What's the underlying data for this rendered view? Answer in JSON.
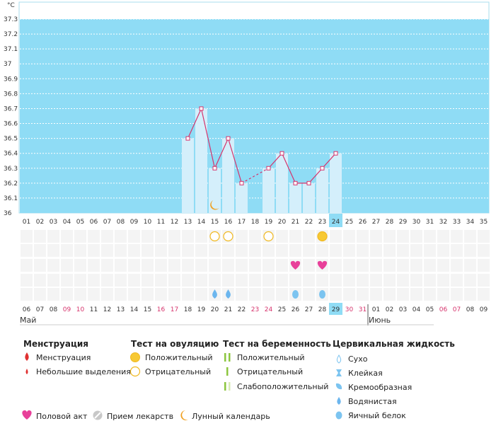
{
  "chart_data": {
    "type": "line",
    "unit": "°C",
    "y_ticks": [
      "37.3",
      "37.2",
      "37.1",
      "37",
      "36.9",
      "36.8",
      "36.7",
      "36.6",
      "36.5",
      "36.4",
      "36.3",
      "36.2",
      "36.1",
      "36"
    ],
    "ylim": [
      36.0,
      37.3
    ],
    "cycle_days": [
      "01",
      "02",
      "03",
      "04",
      "05",
      "06",
      "07",
      "08",
      "09",
      "10",
      "11",
      "12",
      "13",
      "14",
      "15",
      "16",
      "17",
      "18",
      "19",
      "20",
      "21",
      "22",
      "23",
      "24",
      "25",
      "26",
      "27",
      "28",
      "29",
      "30",
      "31",
      "32",
      "33",
      "34",
      "35"
    ],
    "current_cycle_day_index": 23,
    "dates": [
      "06",
      "07",
      "08",
      "09",
      "10",
      "11",
      "12",
      "13",
      "14",
      "15",
      "16",
      "17",
      "18",
      "19",
      "20",
      "21",
      "22",
      "23",
      "24",
      "25",
      "26",
      "27",
      "28",
      "29",
      "30",
      "31",
      "01",
      "02",
      "03",
      "04",
      "05",
      "06",
      "07",
      "08",
      "09"
    ],
    "weekend_date_indices": [
      3,
      4,
      10,
      11,
      17,
      18,
      24,
      25,
      31,
      32
    ],
    "current_date_index": 23,
    "months": [
      {
        "label": "Май",
        "start_index": 0
      },
      {
        "label": "Июнь",
        "start_index": 26
      }
    ],
    "temperature_points": [
      {
        "day_index": 12,
        "value": 36.5
      },
      {
        "day_index": 13,
        "value": 36.7
      },
      {
        "day_index": 14,
        "value": 36.3
      },
      {
        "day_index": 15,
        "value": 36.5
      },
      {
        "day_index": 16,
        "value": 36.2
      },
      {
        "day_index": 18,
        "value": 36.3
      },
      {
        "day_index": 19,
        "value": 36.4
      },
      {
        "day_index": 20,
        "value": 36.2
      },
      {
        "day_index": 21,
        "value": 36.2
      },
      {
        "day_index": 22,
        "value": 36.3
      },
      {
        "day_index": 23,
        "value": 36.4
      }
    ],
    "dashed_segments": [
      [
        16,
        18
      ]
    ],
    "moon_day_indices": [
      14
    ],
    "ovulation_tests": [
      {
        "day_index": 14,
        "result": "negative"
      },
      {
        "day_index": 15,
        "result": "negative"
      },
      {
        "day_index": 18,
        "result": "negative"
      },
      {
        "day_index": 22,
        "result": "positive"
      }
    ],
    "intercourse_day_indices": [
      20,
      22
    ],
    "cervical_fluid": [
      {
        "day_index": 14,
        "type": "watery"
      },
      {
        "day_index": 15,
        "type": "watery"
      },
      {
        "day_index": 20,
        "type": "egg-white"
      },
      {
        "day_index": 22,
        "type": "egg-white"
      }
    ],
    "colors": {
      "background": "#8fdcf5",
      "bar": "#d4effb",
      "line": "#d6336c",
      "weekend": "#d6336c",
      "current_day": "#8fdcf5",
      "ovulation": "#f7c934",
      "heart": "#e8409a",
      "fluid_watery": "#6cb6ee",
      "fluid_egg_white": "#7cc4f0",
      "moon": "#f0a020"
    }
  },
  "legend": {
    "menstruation": {
      "title": "Менструация",
      "items": [
        "Менструация",
        "Небольшие выделения"
      ]
    },
    "ovulation_test": {
      "title": "Тест на овуляцию",
      "items": [
        "Положительный",
        "Отрицательный"
      ]
    },
    "pregnancy_test": {
      "title": "Тест на беременность",
      "items": [
        "Положительный",
        "Отрицательный",
        "Слабоположительный"
      ]
    },
    "cervical_fluid": {
      "title": "Цервикальная жидкость",
      "items": [
        "Сухо",
        "Клейкая",
        "Кремообразная",
        "Водянистая",
        "Яичный белок"
      ]
    },
    "bottom": [
      "Половой акт",
      "Прием лекарств",
      "Лунный календарь"
    ]
  }
}
